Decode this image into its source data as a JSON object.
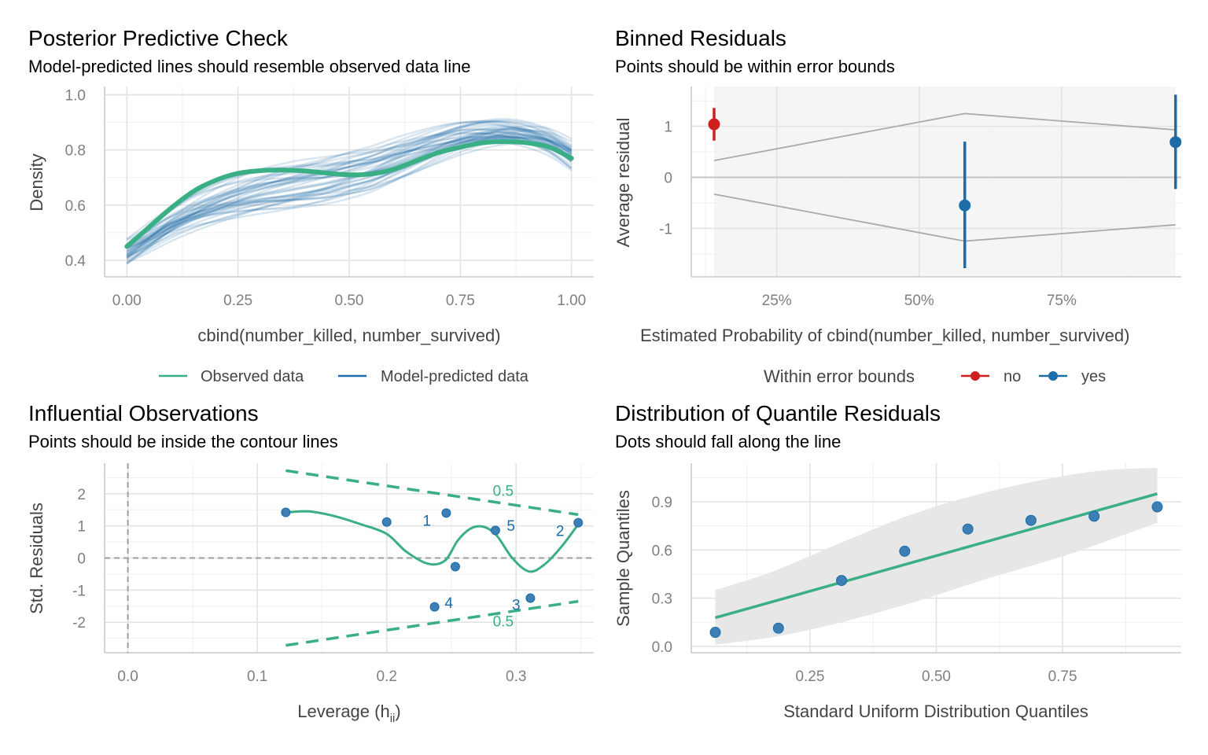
{
  "colors": {
    "observed": "#3aaf85",
    "predicted": "#1b6ca8",
    "no": "#cd201f",
    "yes": "#1b6ca8",
    "bounds": "#aaaaaa",
    "band": "#e6e6e6"
  },
  "chart_data": [
    {
      "id": "ppc",
      "type": "line",
      "title": "Posterior Predictive Check",
      "subtitle": "Model-predicted lines should resemble observed data line",
      "xlabel": "cbind(number_killed, number_survived)",
      "ylabel": "Density",
      "xlim": [
        -0.05,
        1.05
      ],
      "ylim": [
        0.34,
        1.03
      ],
      "xticks": [
        0,
        0.25,
        0.5,
        0.75,
        1
      ],
      "xtick_labels": [
        "0.00",
        "0.25",
        "0.50",
        "0.75",
        "1.00"
      ],
      "yticks": [
        0.4,
        0.6,
        0.8,
        1.0
      ],
      "ytick_labels": [
        "0.4",
        "0.6",
        "0.8",
        "1.0"
      ],
      "grid": true,
      "legend": {
        "position": "bottom",
        "entries": [
          {
            "label": "Observed data",
            "color": "#3aaf85"
          },
          {
            "label": "Model-predicted data",
            "color": "#1b6ca8"
          }
        ]
      },
      "series": [
        {
          "name": "Observed data",
          "x": [
            0,
            0.05,
            0.1,
            0.15,
            0.2,
            0.25,
            0.3,
            0.35,
            0.4,
            0.45,
            0.5,
            0.55,
            0.6,
            0.65,
            0.7,
            0.75,
            0.8,
            0.85,
            0.9,
            0.95,
            1.0
          ],
          "y": [
            0.45,
            0.52,
            0.59,
            0.65,
            0.69,
            0.715,
            0.725,
            0.727,
            0.724,
            0.716,
            0.71,
            0.713,
            0.73,
            0.76,
            0.79,
            0.81,
            0.826,
            0.83,
            0.826,
            0.81,
            0.77
          ]
        },
        {
          "name": "Model-predicted data",
          "x": [
            0,
            0.05,
            0.1,
            0.15,
            0.2,
            0.25,
            0.3,
            0.35,
            0.4,
            0.45,
            0.5,
            0.55,
            0.6,
            0.65,
            0.7,
            0.75,
            0.8,
            0.85,
            0.9,
            0.95,
            1.0
          ],
          "y": [
            0.43,
            0.48,
            0.53,
            0.57,
            0.6,
            0.625,
            0.645,
            0.66,
            0.675,
            0.69,
            0.71,
            0.73,
            0.76,
            0.79,
            0.82,
            0.845,
            0.86,
            0.865,
            0.855,
            0.83,
            0.78
          ],
          "draws": 40
        }
      ]
    },
    {
      "id": "binned",
      "type": "scatter",
      "title": "Binned Residuals",
      "subtitle": "Points should be within error bounds",
      "xlabel": "Estimated Probability of cbind(number_killed, number_survived)",
      "ylabel": "Average residual",
      "xlim": [
        0.1,
        0.96
      ],
      "ylim": [
        -1.95,
        1.78
      ],
      "xticks": [
        0.25,
        0.5,
        0.75
      ],
      "xtick_labels": [
        "25%",
        "50%",
        "75%"
      ],
      "yticks": [
        -1,
        0,
        1
      ],
      "ytick_labels": [
        "-1",
        "0",
        "1"
      ],
      "grid": true,
      "legend": {
        "position": "bottom",
        "title": "Within error bounds",
        "entries": [
          {
            "label": "no",
            "color": "#cd201f"
          },
          {
            "label": "yes",
            "color": "#1b6ca8"
          }
        ]
      },
      "points": [
        {
          "x": 0.14,
          "y": 1.04,
          "ymin": 0.72,
          "ymax": 1.36,
          "group": "no"
        },
        {
          "x": 0.58,
          "y": -0.55,
          "ymin": -1.78,
          "ymax": 0.7,
          "group": "yes"
        },
        {
          "x": 0.95,
          "y": 0.69,
          "ymin": -0.23,
          "ymax": 1.62,
          "group": "yes"
        }
      ],
      "bounds_upper": {
        "x": [
          0.14,
          0.58,
          0.95
        ],
        "y": [
          0.33,
          1.25,
          0.93
        ]
      },
      "bounds_lower": {
        "x": [
          0.14,
          0.58,
          0.95
        ],
        "y": [
          -0.33,
          -1.25,
          -0.93
        ]
      }
    },
    {
      "id": "influential",
      "type": "scatter",
      "title": "Influential Observations",
      "subtitle": "Points should be inside the contour lines",
      "xlabel": "Leverage (h",
      "xlabel_sub": "ii",
      "xlabel_end": ")",
      "ylabel": "Std. Residuals",
      "xlim": [
        -0.018,
        0.36
      ],
      "ylim": [
        -2.95,
        2.95
      ],
      "xticks": [
        0,
        0.1,
        0.2,
        0.3
      ],
      "xtick_labels": [
        "0.0",
        "0.1",
        "0.2",
        "0.3"
      ],
      "yticks": [
        -2,
        -1,
        0,
        1,
        2
      ],
      "ytick_labels": [
        "-2",
        "-1",
        "0",
        "1",
        "2"
      ],
      "grid": true,
      "points": [
        {
          "x": 0.122,
          "y": 1.42
        },
        {
          "x": 0.2,
          "y": 1.12
        },
        {
          "x": 0.246,
          "y": 1.4
        },
        {
          "x": 0.284,
          "y": 0.86
        },
        {
          "x": 0.348,
          "y": 1.1
        },
        {
          "x": 0.253,
          "y": -0.27
        },
        {
          "x": 0.237,
          "y": -1.52
        },
        {
          "x": 0.311,
          "y": -1.25
        }
      ],
      "point_labels": [
        {
          "text": "1",
          "x": 0.231,
          "y": 1.18
        },
        {
          "text": "5",
          "x": 0.296,
          "y": 1.02
        },
        {
          "text": "2",
          "x": 0.334,
          "y": 0.86
        },
        {
          "text": "4",
          "x": 0.248,
          "y": -1.38
        },
        {
          "text": "3",
          "x": 0.3,
          "y": -1.44
        }
      ],
      "smooth": {
        "x": [
          0.122,
          0.14,
          0.16,
          0.18,
          0.2,
          0.215,
          0.232,
          0.245,
          0.255,
          0.265,
          0.275,
          0.285,
          0.297,
          0.31,
          0.322,
          0.335,
          0.348
        ],
        "y": [
          1.42,
          1.45,
          1.3,
          1.05,
          0.75,
          0.2,
          -0.18,
          -0.08,
          0.55,
          0.92,
          0.97,
          0.7,
          0.0,
          -0.42,
          -0.2,
          0.35,
          1.05
        ]
      },
      "contours": [
        {
          "label": "0.5",
          "x": [
            0.122,
            0.348
          ],
          "y": [
            2.72,
            1.35
          ],
          "label_x": 0.29,
          "label_y": 2.1
        },
        {
          "label": "0.5",
          "x": [
            0.122,
            0.348
          ],
          "y": [
            -2.72,
            -1.35
          ],
          "label_x": 0.29,
          "label_y": -1.96
        }
      ]
    },
    {
      "id": "qq",
      "type": "scatter",
      "title": "Distribution of Quantile Residuals",
      "subtitle": "Dots should fall along the line",
      "xlabel": "Standard Uniform Distribution Quantiles",
      "ylabel": "Sample Quantiles",
      "xlim": [
        0.015,
        0.985
      ],
      "ylim": [
        -0.04,
        1.14
      ],
      "xticks": [
        0.25,
        0.5,
        0.75
      ],
      "xtick_labels": [
        "0.25",
        "0.50",
        "0.75"
      ],
      "yticks": [
        0,
        0.3,
        0.6,
        0.9
      ],
      "ytick_labels": [
        "0.0",
        "0.3",
        "0.6",
        "0.9"
      ],
      "grid": true,
      "points": [
        {
          "x": 0.0625,
          "y": 0.087
        },
        {
          "x": 0.1875,
          "y": 0.113
        },
        {
          "x": 0.3125,
          "y": 0.41
        },
        {
          "x": 0.4375,
          "y": 0.592
        },
        {
          "x": 0.5625,
          "y": 0.73
        },
        {
          "x": 0.6875,
          "y": 0.784
        },
        {
          "x": 0.8125,
          "y": 0.81
        },
        {
          "x": 0.9375,
          "y": 0.868
        }
      ],
      "reference_line": {
        "x": [
          0.0625,
          0.9375
        ],
        "y": [
          0.178,
          0.95
        ]
      },
      "band": {
        "x": [
          0.0625,
          0.18,
          0.3,
          0.45,
          0.6,
          0.75,
          0.85,
          0.9375
        ],
        "upper": [
          0.35,
          0.47,
          0.63,
          0.82,
          0.96,
          1.06,
          1.1,
          1.11
        ],
        "lower": [
          0.01,
          0.06,
          0.14,
          0.27,
          0.42,
          0.56,
          0.67,
          0.77
        ]
      }
    }
  ]
}
